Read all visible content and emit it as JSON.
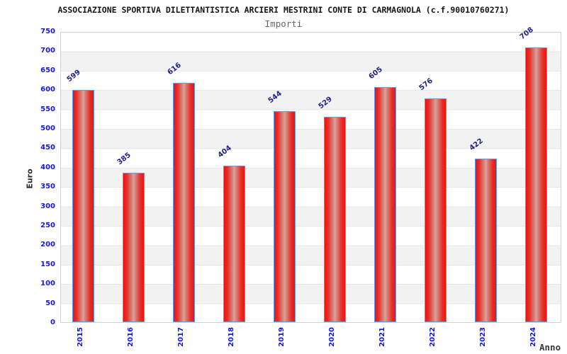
{
  "header": {
    "title": "ASSOCIAZIONE SPORTIVA DILETTANTISTICA ARCIERI MESTRINI CONTE DI CARMAGNOLA (c.f.90010760271)",
    "subtitle": "Importi"
  },
  "axes": {
    "y_title": "Euro",
    "x_title": "Anno"
  },
  "chart_data": {
    "type": "bar",
    "title": "Importi",
    "categories": [
      "2015",
      "2016",
      "2017",
      "2018",
      "2019",
      "2020",
      "2021",
      "2022",
      "2023",
      "2024"
    ],
    "values": [
      599,
      385,
      616,
      404,
      544,
      529,
      605,
      576,
      422,
      708
    ],
    "xlabel": "Anno",
    "ylabel": "Euro",
    "ylim": [
      0,
      750
    ],
    "ytick_step": 50,
    "grid": "horizontal gridlines every 50 with alternating white/gray bands",
    "legend": "none",
    "colors": {
      "bar_edge": "#ee1111",
      "bar_center_highlight": "#dba49d",
      "bar_outline": "#4da3ff",
      "axis_tick_labels": "#1414f0",
      "value_labels": "#202090",
      "band_gray": "#f2f2f2",
      "band_white": "#ffffff",
      "plot_border": "#d2d2d2"
    }
  }
}
